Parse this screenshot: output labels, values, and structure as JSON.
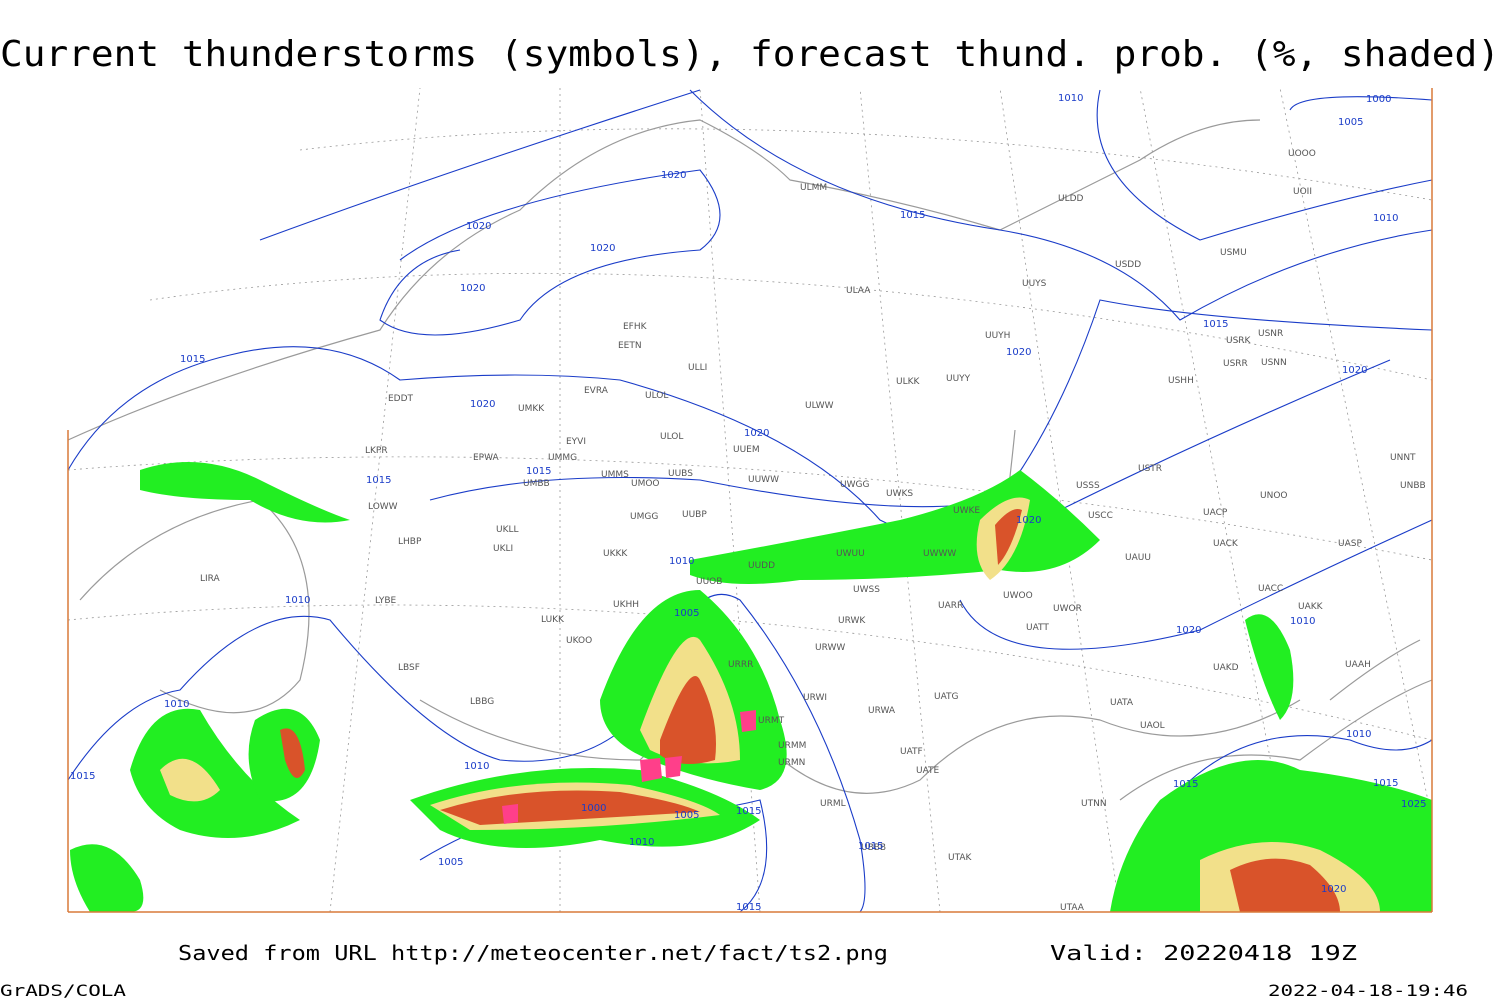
{
  "header": {
    "title": "Current thunderstorms (symbols), forecast thund. prob. (%, shaded)"
  },
  "footer": {
    "source": "Saved from URL http://meteocenter.net/fact/ts2.png",
    "valid": "Valid: 20220418 19Z",
    "software": "GrADS/COLA",
    "timestamp": "2022-04-18-19:46"
  },
  "stations": [
    "ULMM",
    "ULDD",
    "UUYS",
    "ULAA",
    "UUYH",
    "USDD",
    "USMU",
    "UOOO",
    "UOII",
    "USRK",
    "USNR",
    "USRR",
    "USNN",
    "USHH",
    "ULKK",
    "UUYY",
    "ULWW",
    "EFHK",
    "EETN",
    "ULLI",
    "EVRA",
    "ULOL",
    "EDDT",
    "UMKK",
    "ULOL",
    "EYVI",
    "UUEM",
    "LKPR",
    "EPWA",
    "UMMG",
    "UMBB",
    "UMMS",
    "UMOO",
    "UUBS",
    "UUWW",
    "UWGG",
    "UWKS",
    "USSS",
    "USTR",
    "UNOO",
    "UNNT",
    "UNBB",
    "LOWW",
    "UKLL",
    "UMGG",
    "UUBP",
    "UWKE",
    "USCC",
    "UACP",
    "UACK",
    "UASP",
    "LHBP",
    "UKLI",
    "UKKK",
    "UUDD",
    "UWWW",
    "UWUU",
    "UAUU",
    "UUOB",
    "LIRA",
    "LYBE",
    "UKHH",
    "UWSS",
    "UACC",
    "UAKK",
    "UARR",
    "UWOO",
    "UWOR",
    "LUKK",
    "UKOO",
    "URWA",
    "URWI",
    "URRR",
    "URMT",
    "URMM",
    "URMN",
    "UATG",
    "UAAH",
    "UAKD",
    "UATA",
    "UAOL",
    "LBSF",
    "LBBG",
    "UATT",
    "URWW",
    "URWK",
    "UATE",
    "UATF",
    "URML",
    "UTNN",
    "UBBB",
    "UTAK",
    "UTAA"
  ],
  "isobars": [
    1010,
    1000,
    1005,
    1020,
    1020,
    1020,
    1015,
    1010,
    1020,
    1015,
    1020,
    1020,
    1015,
    1020,
    1020,
    1015,
    1015,
    1020,
    1010,
    1010,
    1005,
    1020,
    1010,
    1010,
    1015,
    1010,
    1000,
    1005,
    1015,
    1010,
    1005,
    1015,
    1015,
    1020,
    1010,
    1015,
    1025,
    1015
  ]
}
